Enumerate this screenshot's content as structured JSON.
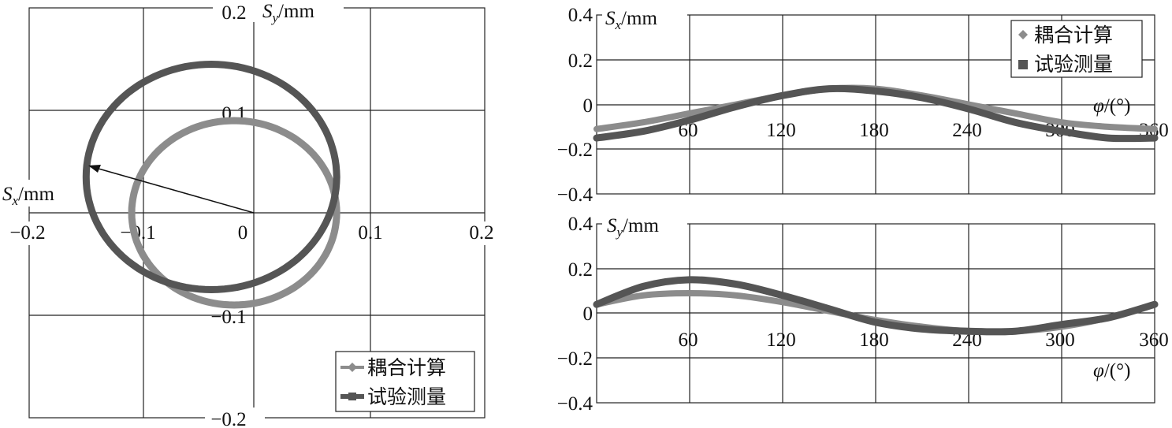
{
  "chart_data": [
    {
      "type": "scatter",
      "subtype": "orbit",
      "xlim": [
        -0.2,
        0.2
      ],
      "ylim": [
        -0.2,
        0.2
      ],
      "x_ticks": [
        "−0.2",
        "−0.1",
        "0",
        "0.1",
        "0.2"
      ],
      "y_ticks": [
        "0.2",
        "0.1",
        "−0.1",
        "−0.2"
      ],
      "ylabel_var": "S",
      "ylabel_sub": "y",
      "ylabel_unit": "/mm",
      "xlabel_var": "S",
      "xlabel_sub": "x",
      "xlabel_unit": "/mm",
      "grid": true,
      "legend_position": "bottom-right",
      "series": [
        {
          "name": "耦合计算",
          "marker": "diamond",
          "color": "#8c8c8c",
          "center": [
            -0.02,
            0.0
          ],
          "radius_x": 0.09,
          "radius_y": 0.09,
          "phase_deg": 0
        },
        {
          "name": "试验测量",
          "marker": "square",
          "color": "#555555",
          "center": [
            -0.04,
            0.035
          ],
          "radius_x": 0.11,
          "radius_y": 0.11,
          "phase_deg": 0
        }
      ]
    },
    {
      "type": "line",
      "xlim": [
        0,
        360
      ],
      "ylim": [
        -0.4,
        0.4
      ],
      "x_ticks": [
        "60",
        "120",
        "180",
        "240",
        "300",
        "360"
      ],
      "y_ticks": [
        "0.4",
        "0.2",
        "0",
        "−0.2",
        "−0.4"
      ],
      "ylabel_var": "S",
      "ylabel_sub": "x",
      "ylabel_unit": "/mm",
      "xlabel_var": "φ",
      "xlabel_unit": "/(°)",
      "grid": true,
      "legend_position": "top-right",
      "series": [
        {
          "name": "耦合计算",
          "marker": "diamond",
          "color": "#8c8c8c",
          "x": [
            0,
            30,
            60,
            90,
            120,
            150,
            180,
            210,
            240,
            270,
            300,
            330,
            360
          ],
          "y": [
            -0.11,
            -0.08,
            -0.04,
            0.0,
            0.04,
            0.07,
            0.07,
            0.04,
            0.0,
            -0.04,
            -0.08,
            -0.1,
            -0.11
          ]
        },
        {
          "name": "试验测量",
          "marker": "square",
          "color": "#555555",
          "x": [
            0,
            30,
            60,
            90,
            120,
            150,
            180,
            210,
            240,
            270,
            300,
            330,
            360
          ],
          "y": [
            -0.15,
            -0.12,
            -0.07,
            -0.01,
            0.04,
            0.07,
            0.06,
            0.03,
            -0.02,
            -0.08,
            -0.12,
            -0.15,
            -0.15
          ]
        }
      ]
    },
    {
      "type": "line",
      "xlim": [
        0,
        360
      ],
      "ylim": [
        -0.4,
        0.4
      ],
      "x_ticks": [
        "60",
        "120",
        "180",
        "240",
        "300",
        "360"
      ],
      "y_ticks": [
        "0.4",
        "0.2",
        "0",
        "−0.2",
        "−0.4"
      ],
      "ylabel_var": "S",
      "ylabel_sub": "y",
      "ylabel_unit": "/mm",
      "xlabel_var": "φ",
      "xlabel_unit": "/(°)",
      "grid": true,
      "legend_position": "none",
      "series": [
        {
          "name": "耦合计算",
          "marker": "diamond",
          "color": "#8c8c8c",
          "x": [
            0,
            30,
            60,
            90,
            120,
            150,
            180,
            210,
            240,
            270,
            300,
            330,
            360
          ],
          "y": [
            0.04,
            0.08,
            0.09,
            0.08,
            0.05,
            0.01,
            -0.03,
            -0.06,
            -0.08,
            -0.08,
            -0.06,
            -0.02,
            0.04
          ]
        },
        {
          "name": "试验测量",
          "marker": "square",
          "color": "#555555",
          "x": [
            0,
            30,
            60,
            90,
            120,
            150,
            180,
            210,
            240,
            270,
            300,
            330,
            360
          ],
          "y": [
            0.04,
            0.12,
            0.15,
            0.13,
            0.08,
            0.02,
            -0.04,
            -0.07,
            -0.08,
            -0.08,
            -0.05,
            -0.02,
            0.04
          ]
        }
      ]
    }
  ]
}
